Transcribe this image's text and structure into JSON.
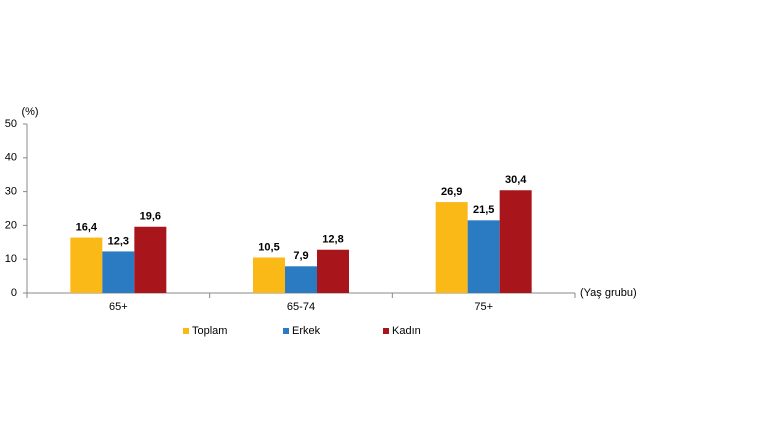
{
  "chart_data": {
    "type": "bar",
    "y_label": "(%)",
    "x_label": "(Yaş grubu)",
    "categories": [
      "65+",
      "65-74",
      "75+"
    ],
    "series": [
      {
        "name": "Toplam",
        "color": "#fbb917",
        "values": [
          16.4,
          10.5,
          26.9
        ],
        "value_labels": [
          "16,4",
          "10,5",
          "26,9"
        ]
      },
      {
        "name": "Erkek",
        "color": "#2a7bc1",
        "values": [
          12.3,
          7.9,
          21.5
        ],
        "value_labels": [
          "12,3",
          "7,9",
          "21,5"
        ]
      },
      {
        "name": "Kadın",
        "color": "#a8161b",
        "values": [
          19.6,
          12.8,
          30.4
        ],
        "value_labels": [
          "19,6",
          "12,8",
          "30,4"
        ]
      }
    ],
    "ylim": [
      0,
      50
    ],
    "yticks": [
      0,
      10,
      20,
      30,
      40,
      50
    ],
    "grid": false
  }
}
